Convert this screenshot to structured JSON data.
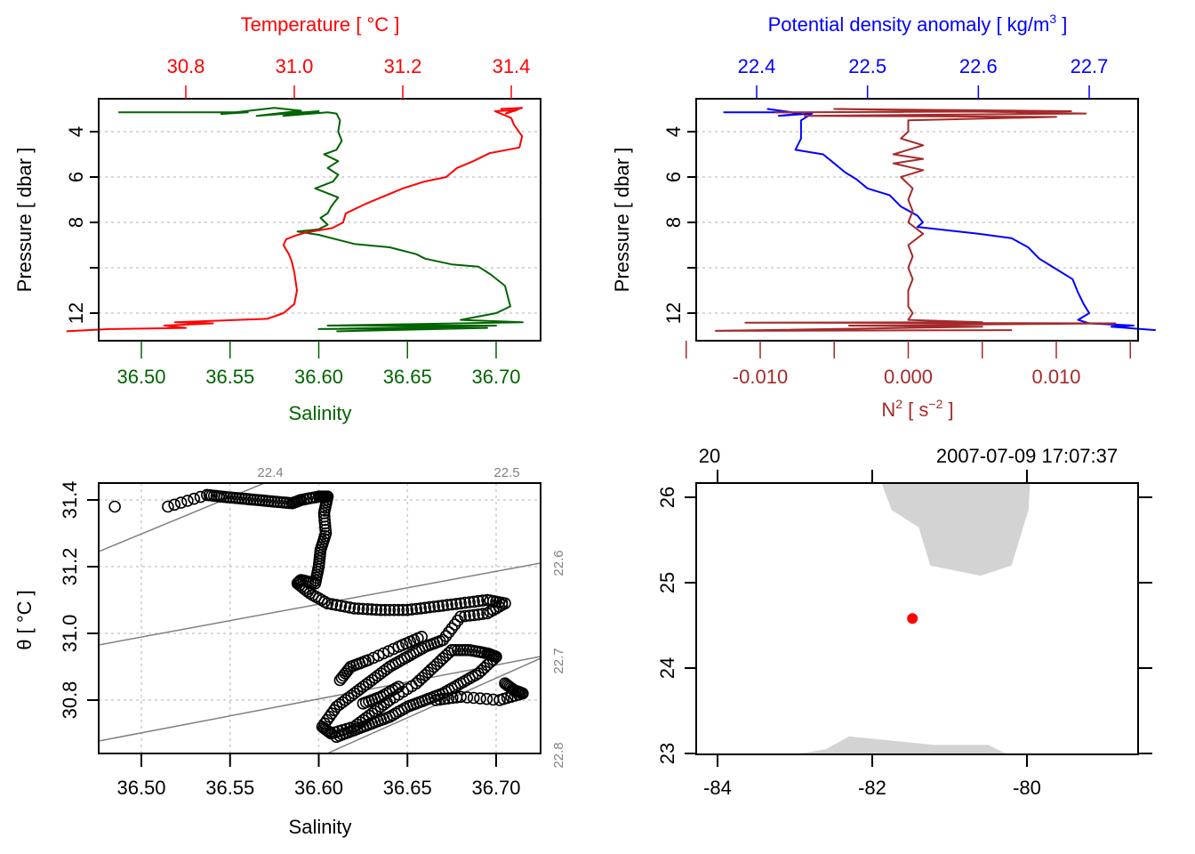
{
  "chart_data": [
    {
      "id": "profile_ts",
      "type": "line",
      "y_axis": {
        "label": "Pressure [ dbar ]",
        "ticks": [
          4,
          6,
          8,
          10,
          12
        ],
        "tick_labels": [
          "4",
          "6",
          "8",
          "",
          "12"
        ],
        "range": [
          2.55,
          13.2
        ],
        "reversed": true,
        "grid": true
      },
      "bottom_axis": {
        "label": "Salinity",
        "ticks": [
          36.5,
          36.55,
          36.6,
          36.65,
          36.7
        ],
        "tick_labels": [
          "36.50",
          "36.55",
          "36.60",
          "36.65",
          "36.70"
        ],
        "color": "#006400"
      },
      "top_axis": {
        "label": "Temperature [ °C ]",
        "ticks": [
          30.8,
          31.0,
          31.2,
          31.4
        ],
        "tick_labels": [
          "30.8",
          "31.0",
          "31.2",
          "31.4"
        ],
        "color": "#ff0000"
      },
      "series": [
        {
          "name": "Salinity",
          "axis": "bottom",
          "color": "#006400",
          "points": [
            [
              36.487,
              3.15
            ],
            [
              36.56,
              3.15
            ],
            [
              36.545,
              3.22
            ],
            [
              36.575,
              2.95
            ],
            [
              36.59,
              3.08
            ],
            [
              36.565,
              3.3
            ],
            [
              36.6,
              3.1
            ],
            [
              36.58,
              3.3
            ],
            [
              36.605,
              3.15
            ],
            [
              36.61,
              3.2
            ],
            [
              36.612,
              3.5
            ],
            [
              36.611,
              4.0
            ],
            [
              36.613,
              4.4
            ],
            [
              36.61,
              4.8
            ],
            [
              36.603,
              5.0
            ],
            [
              36.611,
              5.3
            ],
            [
              36.605,
              5.6
            ],
            [
              36.611,
              5.9
            ],
            [
              36.608,
              6.2
            ],
            [
              36.598,
              6.5
            ],
            [
              36.611,
              6.9
            ],
            [
              36.607,
              7.3
            ],
            [
              36.605,
              7.6
            ],
            [
              36.601,
              7.8
            ],
            [
              36.605,
              8.1
            ],
            [
              36.6,
              8.3
            ],
            [
              36.588,
              8.4
            ],
            [
              36.6,
              8.55
            ],
            [
              36.62,
              8.95
            ],
            [
              36.64,
              9.1
            ],
            [
              36.655,
              9.4
            ],
            [
              36.66,
              9.6
            ],
            [
              36.675,
              9.85
            ],
            [
              36.69,
              9.95
            ],
            [
              36.697,
              10.3
            ],
            [
              36.705,
              10.8
            ],
            [
              36.707,
              11.4
            ],
            [
              36.708,
              11.7
            ],
            [
              36.7,
              12.0
            ],
            [
              36.68,
              12.3
            ],
            [
              36.715,
              12.4
            ],
            [
              36.605,
              12.55
            ],
            [
              36.7,
              12.55
            ],
            [
              36.6,
              12.7
            ],
            [
              36.695,
              12.65
            ],
            [
              36.61,
              12.8
            ]
          ]
        },
        {
          "name": "Temperature",
          "axis": "top",
          "color": "#ff0000",
          "points": [
            [
              31.38,
              3.0
            ],
            [
              31.42,
              2.95
            ],
            [
              31.39,
              3.2
            ],
            [
              31.41,
              3.05
            ],
            [
              31.37,
              3.1
            ],
            [
              31.4,
              3.4
            ],
            [
              31.405,
              3.7
            ],
            [
              31.42,
              4.2
            ],
            [
              31.415,
              4.7
            ],
            [
              31.36,
              4.95
            ],
            [
              31.33,
              5.3
            ],
            [
              31.3,
              5.6
            ],
            [
              31.28,
              6.0
            ],
            [
              31.24,
              6.2
            ],
            [
              31.2,
              6.5
            ],
            [
              31.16,
              6.9
            ],
            [
              31.13,
              7.2
            ],
            [
              31.095,
              7.6
            ],
            [
              31.09,
              8.0
            ],
            [
              31.07,
              8.25
            ],
            [
              31.02,
              8.45
            ],
            [
              31.0,
              8.6
            ],
            [
              30.985,
              8.75
            ],
            [
              30.98,
              9.0
            ],
            [
              30.99,
              9.4
            ],
            [
              30.995,
              9.7
            ],
            [
              31.0,
              10.2
            ],
            [
              31.005,
              11.0
            ],
            [
              31.0,
              11.6
            ],
            [
              30.98,
              12.0
            ],
            [
              30.95,
              12.25
            ],
            [
              30.78,
              12.4
            ],
            [
              30.85,
              12.45
            ],
            [
              30.76,
              12.55
            ],
            [
              30.8,
              12.65
            ],
            [
              30.66,
              12.7
            ],
            [
              30.58,
              12.8
            ]
          ]
        }
      ]
    },
    {
      "id": "profile_density",
      "type": "line",
      "y_axis": {
        "label": "Pressure [ dbar ]",
        "ticks": [
          4,
          6,
          8,
          10,
          12
        ],
        "tick_labels": [
          "4",
          "6",
          "8",
          "",
          "12"
        ],
        "range": [
          2.55,
          13.2
        ],
        "reversed": true,
        "grid": true
      },
      "bottom_axis": {
        "label": "N² [ s⁻² ]",
        "ticks": [
          -0.015,
          -0.01,
          -0.005,
          0.0,
          0.005,
          0.01,
          0.015
        ],
        "tick_labels": [
          "",
          "-0.010",
          "",
          "0.000",
          "",
          "0.010",
          ""
        ],
        "color": "#a52a2a"
      },
      "top_axis": {
        "label": "Potential density anomaly [ kg/m³ ]",
        "ticks": [
          22.4,
          22.5,
          22.6,
          22.7
        ],
        "tick_labels": [
          "22.4",
          "22.5",
          "22.6",
          "22.7"
        ],
        "color": "#0000ff"
      },
      "series": [
        {
          "name": "Potential density anomaly",
          "axis": "top",
          "color": "#0000ff",
          "points": [
            [
              22.37,
              3.15
            ],
            [
              22.43,
              3.15
            ],
            [
              22.41,
              3.0
            ],
            [
              22.44,
              3.2
            ],
            [
              22.42,
              3.3
            ],
            [
              22.45,
              3.2
            ],
            [
              22.44,
              3.5
            ],
            [
              22.44,
              3.9
            ],
            [
              22.44,
              4.3
            ],
            [
              22.435,
              4.8
            ],
            [
              22.46,
              5.0
            ],
            [
              22.47,
              5.4
            ],
            [
              22.48,
              5.8
            ],
            [
              22.49,
              6.1
            ],
            [
              22.5,
              6.5
            ],
            [
              22.52,
              6.8
            ],
            [
              22.53,
              7.3
            ],
            [
              22.545,
              7.7
            ],
            [
              22.55,
              8.0
            ],
            [
              22.545,
              8.2
            ],
            [
              22.6,
              8.5
            ],
            [
              22.63,
              8.7
            ],
            [
              22.645,
              9.1
            ],
            [
              22.655,
              9.6
            ],
            [
              22.665,
              9.9
            ],
            [
              22.685,
              10.5
            ],
            [
              22.69,
              11.1
            ],
            [
              22.695,
              11.6
            ],
            [
              22.7,
              12.0
            ],
            [
              22.69,
              12.3
            ],
            [
              22.7,
              12.45
            ],
            [
              22.74,
              12.55
            ],
            [
              22.72,
              12.6
            ],
            [
              22.76,
              12.75
            ]
          ]
        },
        {
          "name": "N²",
          "axis": "bottom",
          "color": "#a52a2a",
          "points": [
            [
              -0.009,
              3.15
            ],
            [
              0.011,
              3.1
            ],
            [
              -0.005,
              3.0
            ],
            [
              0.012,
              3.2
            ],
            [
              -0.007,
              3.3
            ],
            [
              0.01,
              3.35
            ],
            [
              0.0,
              3.5
            ],
            [
              0.0,
              4.0
            ],
            [
              -0.0005,
              4.3
            ],
            [
              0.001,
              4.6
            ],
            [
              -0.001,
              5.0
            ],
            [
              0.001,
              5.2
            ],
            [
              -0.001,
              5.4
            ],
            [
              0.001,
              5.7
            ],
            [
              -0.0005,
              6.0
            ],
            [
              0.0003,
              6.5
            ],
            [
              0.0,
              7.0
            ],
            [
              0.0003,
              7.5
            ],
            [
              0.0,
              8.0
            ],
            [
              0.001,
              8.5
            ],
            [
              0.0,
              9.0
            ],
            [
              0.0003,
              9.5
            ],
            [
              0.0,
              10.0
            ],
            [
              0.0003,
              10.5
            ],
            [
              0.0,
              11.0
            ],
            [
              0.0,
              11.7
            ],
            [
              0.0003,
              12.0
            ],
            [
              0.0,
              12.3
            ],
            [
              0.005,
              12.4
            ],
            [
              -0.011,
              12.42
            ],
            [
              0.014,
              12.45
            ],
            [
              -0.004,
              12.55
            ],
            [
              0.005,
              12.6
            ],
            [
              -0.013,
              12.78
            ],
            [
              0.007,
              12.75
            ]
          ]
        }
      ]
    },
    {
      "id": "ts_diagram",
      "type": "scatter",
      "xlabel": "Salinity",
      "ylabel": "θ [ °C ]",
      "x_ticks": [
        36.5,
        36.55,
        36.6,
        36.65,
        36.7
      ],
      "x_tick_labels": [
        "36.50",
        "36.55",
        "36.60",
        "36.65",
        "36.70"
      ],
      "y_ticks": [
        30.8,
        31.0,
        31.2,
        31.4
      ],
      "y_tick_labels": [
        "30.8",
        "31.0",
        "31.2",
        "31.4"
      ],
      "xlim": [
        36.476,
        36.725
      ],
      "ylim": [
        30.66,
        31.45
      ],
      "grid": true,
      "isopycnals": {
        "labels": [
          "22.4",
          "22.5",
          "22.6",
          "22.7",
          "22.8"
        ],
        "color": "#808080"
      },
      "points": [
        [
          36.485,
          31.38
        ],
        [
          36.515,
          31.38
        ],
        [
          36.537,
          31.415
        ],
        [
          36.545,
          31.41
        ],
        [
          36.555,
          31.405
        ],
        [
          36.565,
          31.4
        ],
        [
          36.575,
          31.395
        ],
        [
          36.585,
          31.39
        ],
        [
          36.59,
          31.4
        ],
        [
          36.6,
          31.41
        ],
        [
          36.605,
          31.41
        ],
        [
          36.603,
          31.36
        ],
        [
          36.604,
          31.3
        ],
        [
          36.601,
          31.25
        ],
        [
          36.6,
          31.2
        ],
        [
          36.598,
          31.15
        ],
        [
          36.59,
          31.16
        ],
        [
          36.588,
          31.15
        ],
        [
          36.595,
          31.12
        ],
        [
          36.605,
          31.09
        ],
        [
          36.62,
          31.075
        ],
        [
          36.635,
          31.07
        ],
        [
          36.65,
          31.07
        ],
        [
          36.665,
          31.08
        ],
        [
          36.68,
          31.09
        ],
        [
          36.695,
          31.1
        ],
        [
          36.705,
          31.09
        ],
        [
          36.695,
          31.06
        ],
        [
          36.68,
          31.05
        ],
        [
          36.67,
          30.98
        ],
        [
          36.66,
          30.96
        ],
        [
          36.65,
          30.93
        ],
        [
          36.64,
          30.9
        ],
        [
          36.63,
          30.86
        ],
        [
          36.62,
          30.82
        ],
        [
          36.61,
          30.78
        ],
        [
          36.602,
          30.72
        ],
        [
          36.607,
          30.7
        ],
        [
          36.62,
          30.72
        ],
        [
          36.63,
          30.76
        ],
        [
          36.64,
          30.8
        ],
        [
          36.655,
          30.85
        ],
        [
          36.665,
          30.9
        ],
        [
          36.675,
          30.95
        ],
        [
          36.685,
          30.95
        ],
        [
          36.695,
          30.94
        ],
        [
          36.7,
          30.93
        ],
        [
          36.69,
          30.88
        ],
        [
          36.68,
          30.85
        ],
        [
          36.67,
          30.82
        ],
        [
          36.66,
          30.8
        ],
        [
          36.65,
          30.78
        ],
        [
          36.64,
          30.75
        ],
        [
          36.63,
          30.73
        ],
        [
          36.62,
          30.71
        ],
        [
          36.61,
          30.69
        ],
        [
          36.705,
          30.85
        ],
        [
          36.71,
          30.83
        ],
        [
          36.715,
          30.82
        ],
        [
          36.702,
          30.8
        ],
        [
          36.68,
          30.81
        ],
        [
          36.666,
          30.8
        ],
        [
          36.612,
          30.86
        ],
        [
          36.618,
          30.9
        ],
        [
          36.628,
          30.92
        ],
        [
          36.645,
          30.96
        ],
        [
          36.658,
          30.99
        ],
        [
          36.645,
          30.84
        ],
        [
          36.635,
          30.81
        ],
        [
          36.625,
          30.79
        ]
      ]
    },
    {
      "id": "location_map",
      "type": "map",
      "top_label_left": "20",
      "top_label_right": "2007-07-09 17:07:37",
      "x_ticks": [
        -84,
        -82,
        -80
      ],
      "x_tick_labels": [
        "-84",
        "-82",
        "-80"
      ],
      "y_ticks": [
        23,
        24,
        25,
        26
      ],
      "y_tick_labels": [
        "23",
        "24",
        "25",
        "26"
      ],
      "xlim": [
        -84.5,
        -79.2
      ],
      "ylim": [
        22.99,
        26.17
      ],
      "station": {
        "lon": -81.48,
        "lat": 24.58,
        "color": "#ff0000"
      },
      "land_color": "#d3d3d3",
      "land": [
        [
          [
            -81.88,
            26.17
          ],
          [
            -81.75,
            25.85
          ],
          [
            -81.4,
            25.65
          ],
          [
            -81.25,
            25.2
          ],
          [
            -80.6,
            25.08
          ],
          [
            -80.2,
            25.2
          ],
          [
            -79.98,
            25.85
          ],
          [
            -79.96,
            26.17
          ]
        ],
        [
          [
            -83.0,
            22.99
          ],
          [
            -82.6,
            23.05
          ],
          [
            -82.3,
            23.2
          ],
          [
            -81.2,
            23.1
          ],
          [
            -80.5,
            23.1
          ],
          [
            -80.25,
            22.99
          ]
        ]
      ]
    }
  ]
}
